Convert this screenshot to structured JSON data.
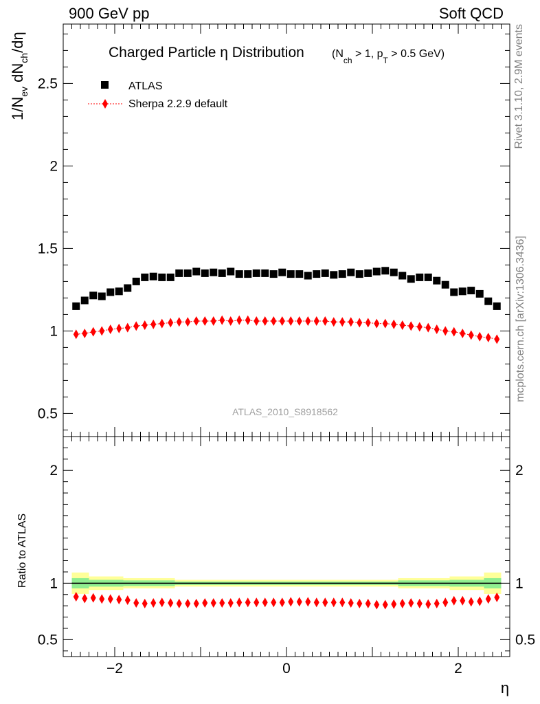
{
  "header": {
    "left": "900 GeV pp",
    "right": "Soft QCD"
  },
  "side_text": {
    "rivet": "Rivet 3.1.10,  2.9M events",
    "mcplots": "mcplots.cern.ch [arXiv:1306.3436]"
  },
  "watermark": "ATLAS_2010_S8918562",
  "chart_data": [
    {
      "type": "scatter",
      "title": "Charged Particle η Distribution",
      "title_suffix": "(N_ch > 1, p_T > 0.5 GeV)",
      "ylabel": "1/N_ev dN_ch/dη",
      "xlim": [
        -2.6,
        2.6
      ],
      "ylim": [
        0.36,
        2.86
      ],
      "y_ticks": [
        0.5,
        1,
        1.5,
        2,
        2.5
      ],
      "y_tick_labels": [
        "0.5",
        "1",
        "1.5",
        "2",
        "2.5"
      ],
      "legend_position": "top-left",
      "x": [
        -2.45,
        -2.35,
        -2.25,
        -2.15,
        -2.05,
        -1.95,
        -1.85,
        -1.75,
        -1.65,
        -1.55,
        -1.45,
        -1.35,
        -1.25,
        -1.15,
        -1.05,
        -0.95,
        -0.85,
        -0.75,
        -0.65,
        -0.55,
        -0.45,
        -0.35,
        -0.25,
        -0.15,
        -0.05,
        0.05,
        0.15,
        0.25,
        0.35,
        0.45,
        0.55,
        0.65,
        0.75,
        0.85,
        0.95,
        1.05,
        1.15,
        1.25,
        1.35,
        1.45,
        1.55,
        1.65,
        1.75,
        1.85,
        1.95,
        2.05,
        2.15,
        2.25,
        2.35,
        2.45
      ],
      "series": [
        {
          "name": "ATLAS",
          "marker": "square",
          "color": "#000000",
          "values": [
            1.15,
            1.185,
            1.215,
            1.21,
            1.235,
            1.24,
            1.26,
            1.3,
            1.325,
            1.33,
            1.325,
            1.325,
            1.35,
            1.35,
            1.36,
            1.35,
            1.355,
            1.35,
            1.36,
            1.345,
            1.345,
            1.35,
            1.35,
            1.345,
            1.355,
            1.345,
            1.345,
            1.335,
            1.345,
            1.35,
            1.34,
            1.345,
            1.355,
            1.345,
            1.35,
            1.36,
            1.365,
            1.355,
            1.335,
            1.315,
            1.325,
            1.325,
            1.305,
            1.28,
            1.235,
            1.24,
            1.245,
            1.225,
            1.18,
            1.15
          ]
        },
        {
          "name": "Sherpa 2.2.9 default",
          "marker": "diamond",
          "color": "#ff0000",
          "values": [
            0.98,
            0.985,
            0.995,
            1.0,
            1.01,
            1.015,
            1.02,
            1.03,
            1.035,
            1.04,
            1.045,
            1.05,
            1.055,
            1.055,
            1.06,
            1.06,
            1.06,
            1.065,
            1.06,
            1.065,
            1.065,
            1.06,
            1.06,
            1.06,
            1.06,
            1.06,
            1.06,
            1.06,
            1.06,
            1.06,
            1.055,
            1.055,
            1.055,
            1.05,
            1.05,
            1.045,
            1.045,
            1.04,
            1.035,
            1.03,
            1.025,
            1.02,
            1.01,
            1.0,
            0.995,
            0.985,
            0.975,
            0.965,
            0.96,
            0.95
          ]
        }
      ]
    },
    {
      "type": "scatter",
      "ylabel": "Ratio to ATLAS",
      "xlabel": "η",
      "xlim": [
        -2.6,
        2.6
      ],
      "ylim": [
        0.35,
        2.3
      ],
      "y_ticks": [
        0.5,
        1,
        2
      ],
      "y_tick_labels": [
        "0.5",
        "1",
        "2"
      ],
      "x_ticks": [
        -2,
        0,
        2
      ],
      "x_tick_labels": [
        "−2",
        "0",
        "2"
      ],
      "reference_line": 1,
      "uncertainty_bands": [
        {
          "x0": -2.5,
          "x1": -2.3,
          "inner": [
            0.955,
            1.045
          ],
          "outer": [
            0.905,
            1.095
          ]
        },
        {
          "x0": -2.3,
          "x1": -1.9,
          "inner": [
            0.97,
            1.03
          ],
          "outer": [
            0.94,
            1.06
          ]
        },
        {
          "x0": -1.9,
          "x1": -1.3,
          "inner": [
            0.975,
            1.025
          ],
          "outer": [
            0.955,
            1.045
          ]
        },
        {
          "x0": -1.3,
          "x1": 1.3,
          "inner": [
            0.985,
            1.015
          ],
          "outer": [
            0.97,
            1.03
          ]
        },
        {
          "x0": 1.3,
          "x1": 1.9,
          "inner": [
            0.975,
            1.025
          ],
          "outer": [
            0.955,
            1.045
          ]
        },
        {
          "x0": 1.9,
          "x1": 2.3,
          "inner": [
            0.97,
            1.03
          ],
          "outer": [
            0.94,
            1.06
          ]
        },
        {
          "x0": 2.3,
          "x1": 2.5,
          "inner": [
            0.955,
            1.045
          ],
          "outer": [
            0.905,
            1.095
          ]
        }
      ],
      "band_colors": {
        "inner": "#90ee90",
        "outer": "#ffff99"
      },
      "series": [
        {
          "name": "Sherpa 2.2.9 default",
          "marker": "diamond",
          "color": "#ff0000",
          "values": [
            0.88,
            0.865,
            0.87,
            0.86,
            0.86,
            0.855,
            0.85,
            0.825,
            0.82,
            0.825,
            0.83,
            0.825,
            0.82,
            0.82,
            0.82,
            0.825,
            0.825,
            0.825,
            0.825,
            0.83,
            0.83,
            0.83,
            0.83,
            0.83,
            0.83,
            0.835,
            0.835,
            0.835,
            0.83,
            0.83,
            0.83,
            0.83,
            0.825,
            0.82,
            0.82,
            0.81,
            0.81,
            0.815,
            0.82,
            0.825,
            0.82,
            0.815,
            0.82,
            0.83,
            0.845,
            0.845,
            0.835,
            0.84,
            0.86,
            0.875
          ]
        }
      ]
    }
  ]
}
